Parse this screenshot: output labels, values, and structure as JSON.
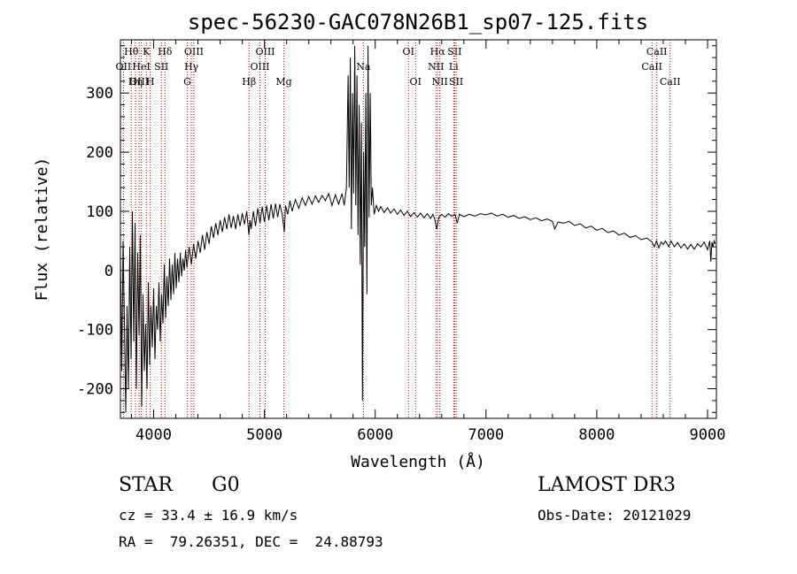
{
  "chart_data": {
    "type": "line",
    "title": "spec-56230-GAC078N26B1_sp07-125.fits",
    "xlabel": "Wavelength (Å)",
    "ylabel": "Flux (relative)",
    "xlim": [
      3700,
      9080
    ],
    "ylim": [
      -250,
      390
    ],
    "xticks": [
      4000,
      5000,
      6000,
      7000,
      8000,
      9000
    ],
    "yticks": [
      -200,
      -100,
      0,
      100,
      200,
      300
    ],
    "grid": false,
    "line_color": "#000000",
    "marker_color": "#cc0000",
    "spectrum": [
      [
        3700,
        30
      ],
      [
        3712,
        -170
      ],
      [
        3724,
        50
      ],
      [
        3736,
        -90
      ],
      [
        3748,
        -240
      ],
      [
        3760,
        -60
      ],
      [
        3772,
        -200
      ],
      [
        3784,
        40
      ],
      [
        3796,
        -150
      ],
      [
        3808,
        100
      ],
      [
        3820,
        -120
      ],
      [
        3832,
        80
      ],
      [
        3844,
        -200
      ],
      [
        3856,
        30
      ],
      [
        3868,
        -110
      ],
      [
        3880,
        60
      ],
      [
        3892,
        -230
      ],
      [
        3904,
        -40
      ],
      [
        3916,
        -170
      ],
      [
        3928,
        -90
      ],
      [
        3940,
        -200
      ],
      [
        3952,
        -20
      ],
      [
        3964,
        -160
      ],
      [
        3976,
        -60
      ],
      [
        3988,
        -130
      ],
      [
        4000,
        -30
      ],
      [
        4012,
        -150
      ],
      [
        4024,
        -60
      ],
      [
        4036,
        -100
      ],
      [
        4048,
        -20
      ],
      [
        4060,
        -120
      ],
      [
        4072,
        -40
      ],
      [
        4084,
        -90
      ],
      [
        4096,
        10
      ],
      [
        4108,
        -80
      ],
      [
        4120,
        -10
      ],
      [
        4132,
        -60
      ],
      [
        4144,
        20
      ],
      [
        4156,
        -50
      ],
      [
        4168,
        10
      ],
      [
        4180,
        -40
      ],
      [
        4192,
        30
      ],
      [
        4204,
        -30
      ],
      [
        4216,
        20
      ],
      [
        4228,
        -20
      ],
      [
        4240,
        30
      ],
      [
        4252,
        -10
      ],
      [
        4264,
        20
      ],
      [
        4276,
        0
      ],
      [
        4288,
        35
      ],
      [
        4300,
        5
      ],
      [
        4320,
        40
      ],
      [
        4340,
        10
      ],
      [
        4360,
        45
      ],
      [
        4380,
        20
      ],
      [
        4400,
        50
      ],
      [
        4420,
        30
      ],
      [
        4440,
        60
      ],
      [
        4460,
        35
      ],
      [
        4480,
        65
      ],
      [
        4500,
        45
      ],
      [
        4520,
        75
      ],
      [
        4540,
        55
      ],
      [
        4560,
        80
      ],
      [
        4580,
        60
      ],
      [
        4600,
        85
      ],
      [
        4620,
        65
      ],
      [
        4640,
        90
      ],
      [
        4660,
        70
      ],
      [
        4680,
        95
      ],
      [
        4700,
        72
      ],
      [
        4720,
        92
      ],
      [
        4740,
        70
      ],
      [
        4760,
        95
      ],
      [
        4780,
        75
      ],
      [
        4800,
        97
      ],
      [
        4820,
        78
      ],
      [
        4840,
        100
      ],
      [
        4860,
        60
      ],
      [
        4870,
        85
      ],
      [
        4880,
        70
      ],
      [
        4900,
        100
      ],
      [
        4920,
        75
      ],
      [
        4940,
        105
      ],
      [
        4960,
        80
      ],
      [
        4980,
        108
      ],
      [
        5000,
        82
      ],
      [
        5020,
        110
      ],
      [
        5040,
        85
      ],
      [
        5060,
        112
      ],
      [
        5080,
        88
      ],
      [
        5100,
        113
      ],
      [
        5120,
        90
      ],
      [
        5140,
        112
      ],
      [
        5160,
        95
      ],
      [
        5180,
        65
      ],
      [
        5190,
        110
      ],
      [
        5210,
        95
      ],
      [
        5230,
        118
      ],
      [
        5250,
        100
      ],
      [
        5280,
        120
      ],
      [
        5310,
        105
      ],
      [
        5340,
        123
      ],
      [
        5370,
        110
      ],
      [
        5400,
        125
      ],
      [
        5430,
        112
      ],
      [
        5460,
        126
      ],
      [
        5490,
        115
      ],
      [
        5520,
        127
      ],
      [
        5550,
        118
      ],
      [
        5580,
        130
      ],
      [
        5610,
        110
      ],
      [
        5640,
        128
      ],
      [
        5670,
        112
      ],
      [
        5700,
        130
      ],
      [
        5720,
        110
      ],
      [
        5740,
        140
      ],
      [
        5755,
        330
      ],
      [
        5765,
        140
      ],
      [
        5775,
        360
      ],
      [
        5785,
        70
      ],
      [
        5795,
        300
      ],
      [
        5805,
        130
      ],
      [
        5815,
        380
      ],
      [
        5825,
        110
      ],
      [
        5835,
        330
      ],
      [
        5845,
        60
      ],
      [
        5855,
        280
      ],
      [
        5865,
        10
      ],
      [
        5875,
        250
      ],
      [
        5885,
        -220
      ],
      [
        5895,
        200
      ],
      [
        5905,
        40
      ],
      [
        5915,
        300
      ],
      [
        5925,
        -40
      ],
      [
        5935,
        380
      ],
      [
        5945,
        90
      ],
      [
        5955,
        300
      ],
      [
        5965,
        110
      ],
      [
        5975,
        140
      ],
      [
        5990,
        95
      ],
      [
        6010,
        110
      ],
      [
        6030,
        100
      ],
      [
        6050,
        108
      ],
      [
        6080,
        98
      ],
      [
        6110,
        106
      ],
      [
        6140,
        97
      ],
      [
        6170,
        104
      ],
      [
        6200,
        95
      ],
      [
        6230,
        102
      ],
      [
        6260,
        93
      ],
      [
        6290,
        100
      ],
      [
        6320,
        91
      ],
      [
        6350,
        98
      ],
      [
        6380,
        90
      ],
      [
        6410,
        97
      ],
      [
        6440,
        89
      ],
      [
        6470,
        96
      ],
      [
        6500,
        88
      ],
      [
        6520,
        95
      ],
      [
        6540,
        85
      ],
      [
        6555,
        70
      ],
      [
        6563,
        78
      ],
      [
        6575,
        90
      ],
      [
        6600,
        95
      ],
      [
        6630,
        90
      ],
      [
        6660,
        96
      ],
      [
        6690,
        92
      ],
      [
        6720,
        95
      ],
      [
        6740,
        80
      ],
      [
        6760,
        95
      ],
      [
        6800,
        91
      ],
      [
        6850,
        95
      ],
      [
        6900,
        92
      ],
      [
        6950,
        96
      ],
      [
        7000,
        94
      ],
      [
        7050,
        97
      ],
      [
        7100,
        92
      ],
      [
        7150,
        95
      ],
      [
        7200,
        90
      ],
      [
        7250,
        93
      ],
      [
        7300,
        88
      ],
      [
        7350,
        91
      ],
      [
        7400,
        86
      ],
      [
        7450,
        89
      ],
      [
        7500,
        84
      ],
      [
        7550,
        87
      ],
      [
        7600,
        83
      ],
      [
        7620,
        70
      ],
      [
        7650,
        82
      ],
      [
        7700,
        80
      ],
      [
        7750,
        83
      ],
      [
        7800,
        76
      ],
      [
        7850,
        79
      ],
      [
        7900,
        72
      ],
      [
        7950,
        75
      ],
      [
        8000,
        68
      ],
      [
        8050,
        71
      ],
      [
        8100,
        64
      ],
      [
        8150,
        67
      ],
      [
        8200,
        60
      ],
      [
        8250,
        63
      ],
      [
        8300,
        56
      ],
      [
        8350,
        59
      ],
      [
        8400,
        52
      ],
      [
        8450,
        55
      ],
      [
        8500,
        48
      ],
      [
        8520,
        40
      ],
      [
        8540,
        50
      ],
      [
        8560,
        38
      ],
      [
        8580,
        48
      ],
      [
        8600,
        44
      ],
      [
        8620,
        50
      ],
      [
        8650,
        40
      ],
      [
        8670,
        50
      ],
      [
        8700,
        40
      ],
      [
        8730,
        47
      ],
      [
        8760,
        38
      ],
      [
        8790,
        45
      ],
      [
        8820,
        36
      ],
      [
        8850,
        44
      ],
      [
        8880,
        36
      ],
      [
        8910,
        45
      ],
      [
        8940,
        40
      ],
      [
        8970,
        48
      ],
      [
        9000,
        35
      ],
      [
        9020,
        50
      ],
      [
        9030,
        15
      ],
      [
        9040,
        48
      ],
      [
        9050,
        40
      ],
      [
        9060,
        50
      ],
      [
        9070,
        45
      ]
    ],
    "line_markers": [
      {
        "label": "Hθ",
        "wl": 3798,
        "row": 0
      },
      {
        "label": "OII",
        "wl": 3727,
        "row": 1
      },
      {
        "label": "OIII",
        "wl": 3869,
        "row": 2
      },
      {
        "label": "K",
        "wl": 3934,
        "row": 0
      },
      {
        "label": "HeI",
        "wl": 3889,
        "row": 1
      },
      {
        "label": "Hη",
        "wl": 3835,
        "row": 2
      },
      {
        "label": "Hδ",
        "wl": 4102,
        "row": 0
      },
      {
        "label": "SII",
        "wl": 4070,
        "row": 1
      },
      {
        "label": "H",
        "wl": 3969,
        "row": 2
      },
      {
        "label": "OIII",
        "wl": 4363,
        "row": 0
      },
      {
        "label": "Hγ",
        "wl": 4340,
        "row": 1
      },
      {
        "label": "G",
        "wl": 4304,
        "row": 2
      },
      {
        "label": "OIII",
        "wl": 5007,
        "row": 0
      },
      {
        "label": "OIII",
        "wl": 4959,
        "row": 1
      },
      {
        "label": "Hβ",
        "wl": 4861,
        "row": 2
      },
      {
        "label": "Mg",
        "wl": 5175,
        "row": 2
      },
      {
        "label": "Na",
        "wl": 5893,
        "row": 1
      },
      {
        "label": "OI",
        "wl": 6300,
        "row": 0
      },
      {
        "label": "OI",
        "wl": 6364,
        "row": 2
      },
      {
        "label": "Hα",
        "wl": 6563,
        "row": 0
      },
      {
        "label": "NII",
        "wl": 6548,
        "row": 1
      },
      {
        "label": "NII",
        "wl": 6583,
        "row": 2
      },
      {
        "label": "SII",
        "wl": 6717,
        "row": 0
      },
      {
        "label": "Li",
        "wl": 6708,
        "row": 1
      },
      {
        "label": "SII",
        "wl": 6731,
        "row": 2
      },
      {
        "label": "CaII",
        "wl": 8542,
        "row": 0
      },
      {
        "label": "CaII",
        "wl": 8498,
        "row": 1
      },
      {
        "label": "CaII",
        "wl": 8662,
        "row": 2
      }
    ]
  },
  "info": {
    "class_label": "STAR",
    "subclass": "G0",
    "survey": "LAMOST DR3",
    "redshift": "cz = 33.4 ± 16.9 km/s",
    "obs_date": "Obs-Date: 20121029",
    "coords": "RA =  79.26351, DEC =  24.88793"
  }
}
